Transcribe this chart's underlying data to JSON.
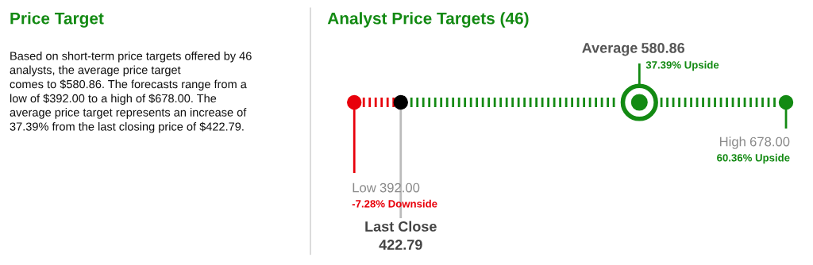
{
  "chart_data": [
    {
      "type": "other",
      "title": "Price Target",
      "annotations": [
        "Based on short-term price targets offered by 46\nanalysts, the average price target\ncomes to $580.86. The forecasts range from a\nlow of $392.00 to a high of $678.00. The\naverage price target represents an increase of\n37.39% from the last closing price of $422.79."
      ]
    },
    {
      "type": "other",
      "title": "Analyst Price Targets (46)",
      "categories": [
        "Low",
        "Last Close",
        "Average",
        "High"
      ],
      "values": [
        392.0,
        422.79,
        580.86,
        678.0
      ],
      "value_labels": [
        "392.00",
        "422.79",
        "580.86",
        "678.00"
      ],
      "colors": [
        "#e8000b",
        "#000000",
        "#138a13",
        "#138a13"
      ],
      "annotations": [
        "-7.28% Downside",
        "37.39% Upside",
        "60.36% Upside"
      ]
    }
  ]
}
